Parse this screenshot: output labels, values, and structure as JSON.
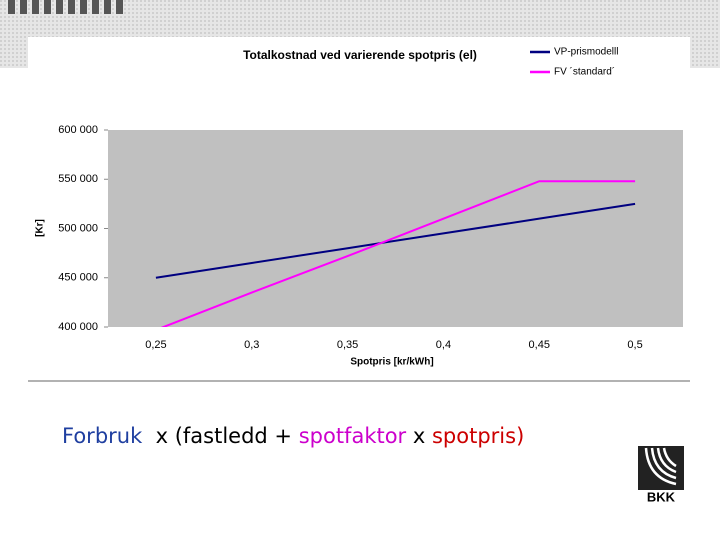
{
  "chart_data": {
    "type": "line",
    "title": "Totalkostnad ved varierende spotpris (el)",
    "x_label": "Spotpris [kr/kWh]",
    "y_label": "[Kr]",
    "categories": [
      "0,25",
      "0,3",
      "0,35",
      "0,4",
      "0,45",
      "0,5"
    ],
    "series": [
      {
        "name": "VP-prismodelll",
        "color": "#000080",
        "values": [
          450000,
          465000,
          480000,
          495000,
          510000,
          525000
        ]
      },
      {
        "name": "FV ´standard´",
        "color": "#ff00ff",
        "values": [
          397000,
          435000,
          472000,
          510000,
          548000,
          548000
        ]
      }
    ],
    "ylim": [
      400000,
      600000
    ],
    "yticks": [
      {
        "value": 400000,
        "label": "400 000"
      },
      {
        "value": 450000,
        "label": "450 000"
      },
      {
        "value": 500000,
        "label": "500 000"
      },
      {
        "value": 550000,
        "label": "550 000"
      },
      {
        "value": 600000,
        "label": "600 000"
      }
    ],
    "grid": false,
    "legend": "top-right",
    "plot_background": "#c0c0c0"
  },
  "formula": [
    {
      "text": "Forbruk",
      "color": "#1f3fa0"
    },
    {
      "text": "  x (fastledd + ",
      "color": "#000000"
    },
    {
      "text": "spotfaktor",
      "color": "#cc00cc"
    },
    {
      "text": " x ",
      "color": "#000000"
    },
    {
      "text": "spotpris)",
      "color": "#cc0000"
    }
  ],
  "logo": "BKK"
}
